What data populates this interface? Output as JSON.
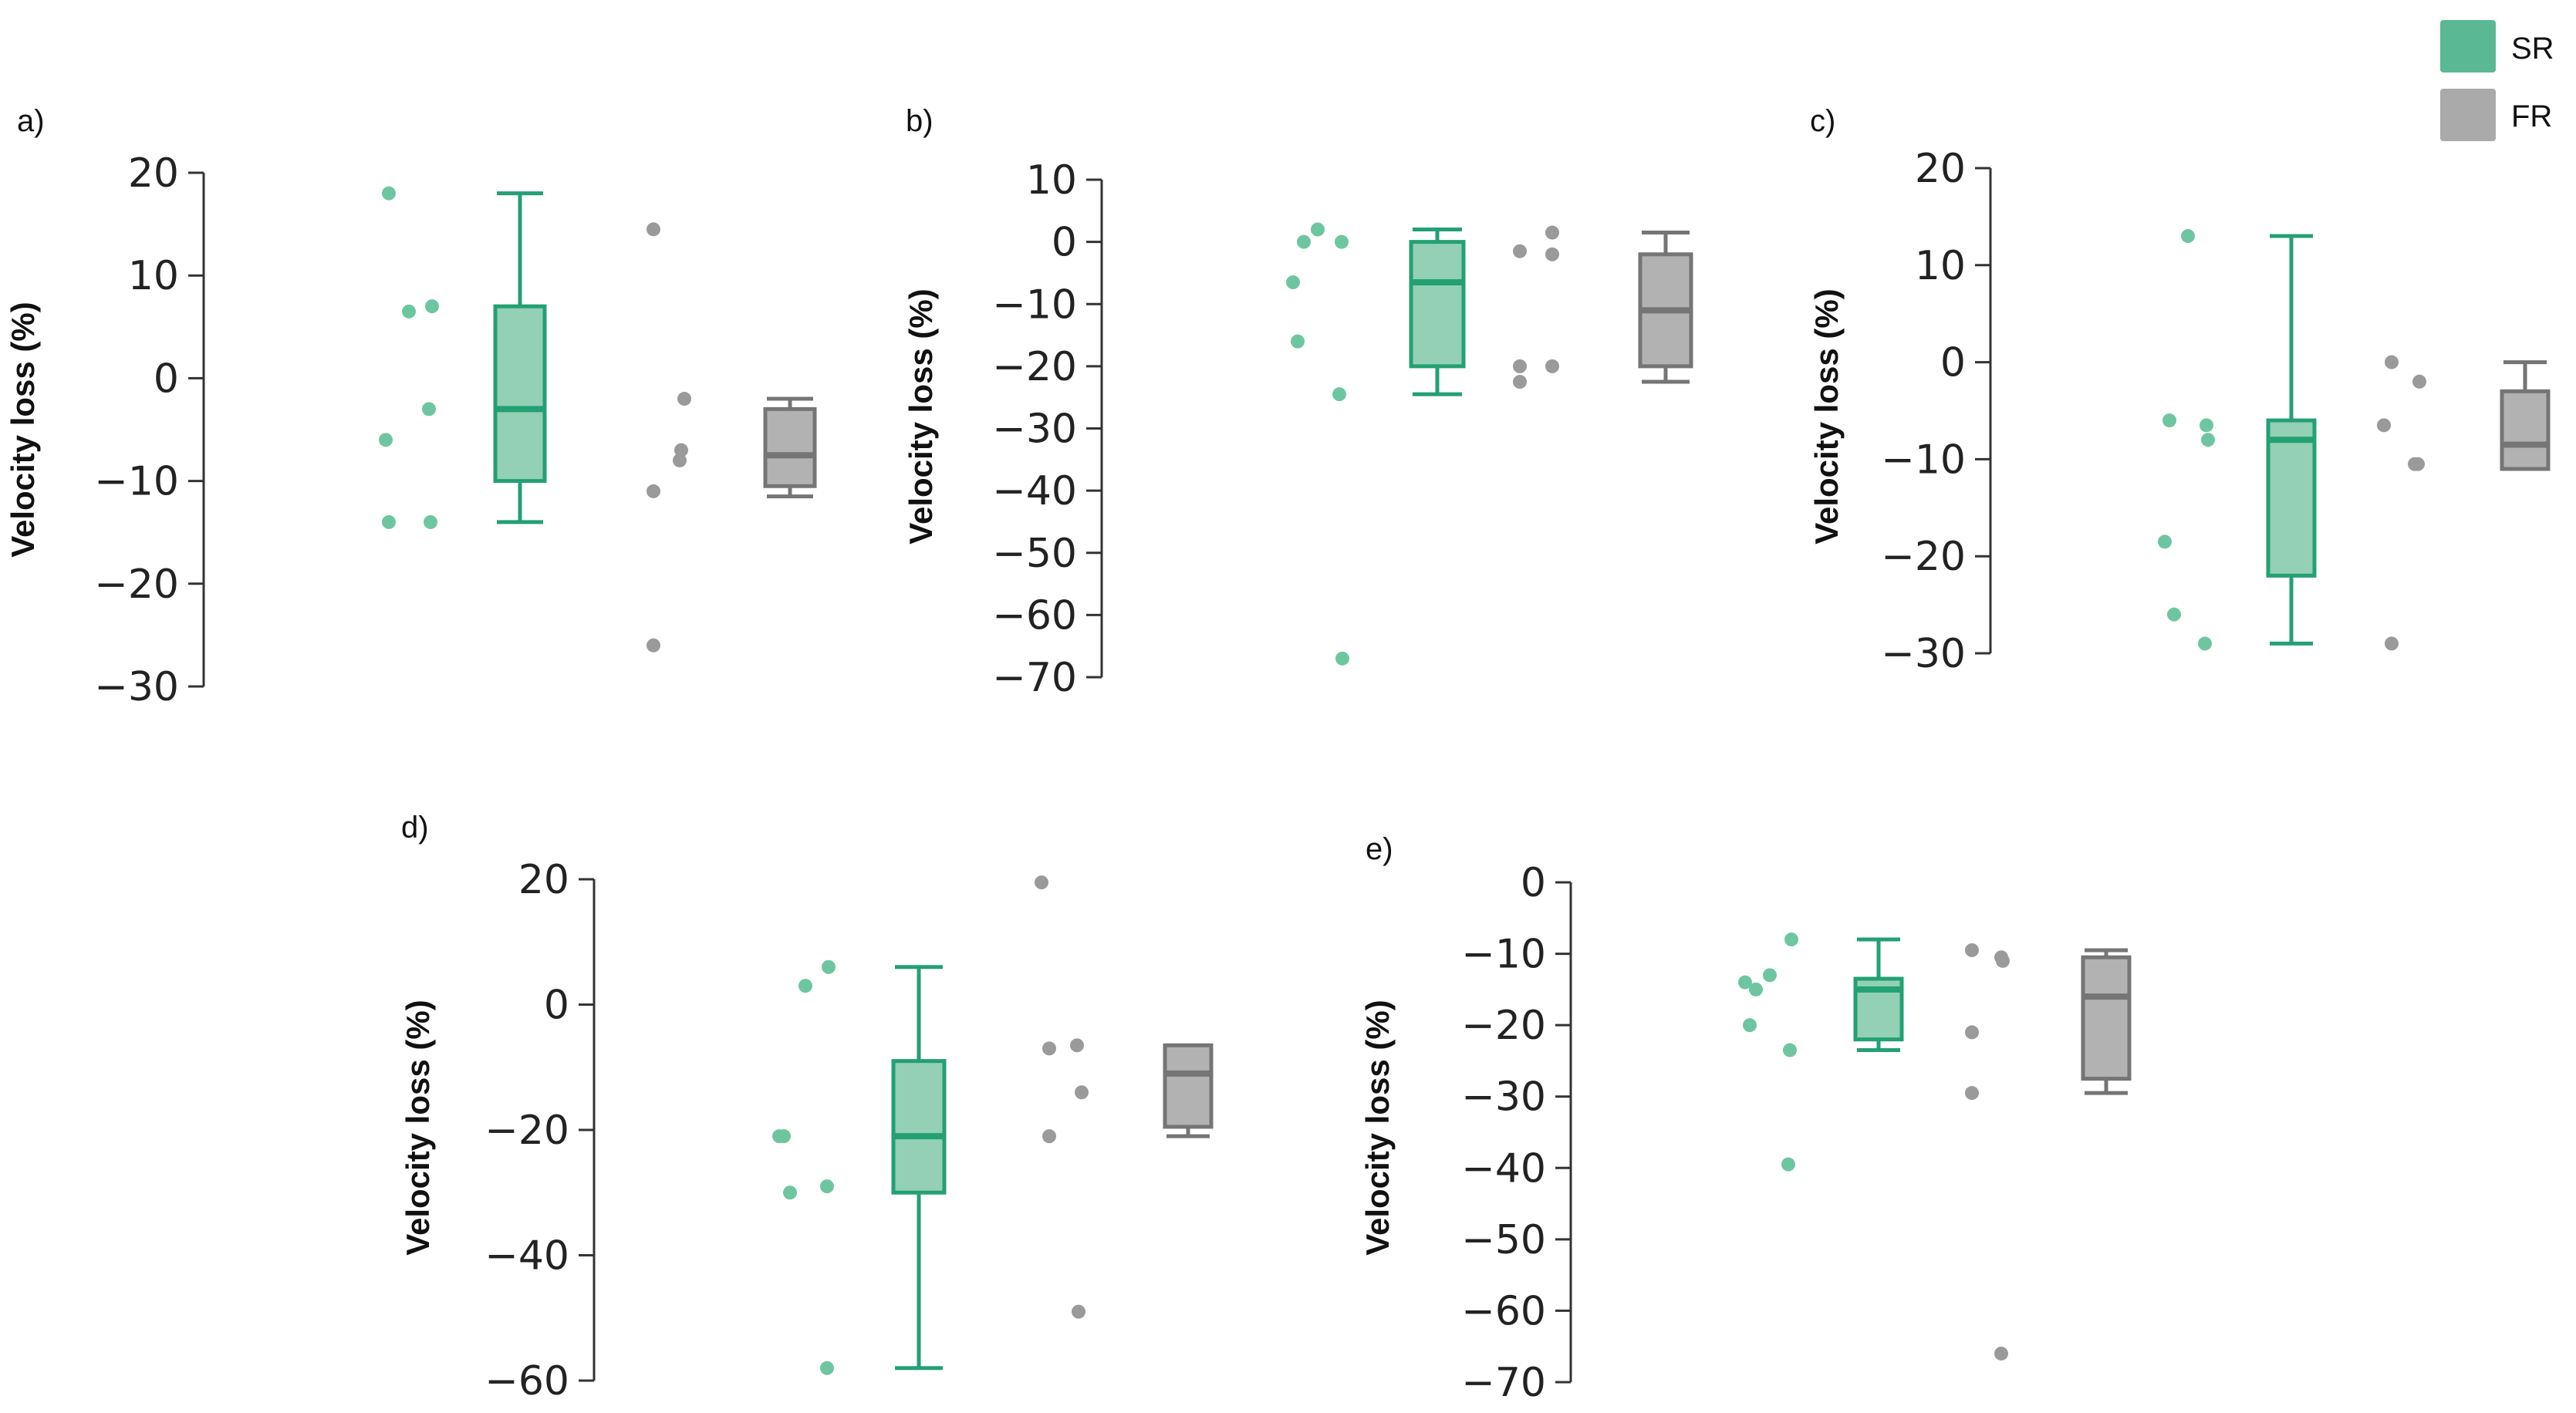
{
  "legend": {
    "items": [
      {
        "label": "SR",
        "color": "#5bb895"
      },
      {
        "label": "FR",
        "color": "#aaaaaa"
      }
    ]
  },
  "colors": {
    "sr_box_fill": "#93d0b5",
    "sr_stroke": "#23a074",
    "sr_point": "#6ec6a1",
    "fr_box_fill": "#b2b2b2",
    "fr_stroke": "#757575",
    "fr_point": "#9a9a9a"
  },
  "chart_data": [
    {
      "type": "box",
      "panel": "a)",
      "ylabel": "Velocity loss (%)",
      "ylim": [
        -30,
        20
      ],
      "yticks": [
        20,
        10,
        0,
        -10,
        -20,
        -30
      ],
      "series": [
        {
          "name": "SR",
          "points": [
            18,
            6.5,
            7,
            -3,
            -6,
            -14,
            -14
          ],
          "whisker_low": -14,
          "q1": -10,
          "median": -3,
          "q3": 7,
          "whisker_high": 18
        },
        {
          "name": "FR",
          "points": [
            14.5,
            -2,
            -7,
            -8,
            -11,
            -26
          ],
          "whisker_low": -11.5,
          "q1": -10.5,
          "median": -7.5,
          "q3": -3,
          "whisker_high": -2
        }
      ]
    },
    {
      "type": "box",
      "panel": "b)",
      "ylabel": "Velocity loss (%)",
      "ylim": [
        -70,
        10
      ],
      "yticks": [
        10,
        0,
        -10,
        -20,
        -30,
        -40,
        -50,
        -60,
        -70
      ],
      "series": [
        {
          "name": "SR",
          "points": [
            2,
            0,
            0,
            -6.5,
            -16,
            -24.5,
            -67
          ],
          "whisker_low": -24.5,
          "q1": -20,
          "median": -6.5,
          "q3": 0,
          "whisker_high": 2
        },
        {
          "name": "FR",
          "points": [
            1.5,
            -1.5,
            -2,
            -20,
            -20,
            -22.5
          ],
          "whisker_low": -22.5,
          "q1": -20,
          "median": -11,
          "q3": -2,
          "whisker_high": 1.5
        }
      ]
    },
    {
      "type": "box",
      "panel": "c)",
      "ylabel": "Velocity loss (%)",
      "ylim": [
        -30,
        20
      ],
      "yticks": [
        20,
        10,
        0,
        -10,
        -20,
        -30
      ],
      "series": [
        {
          "name": "SR",
          "points": [
            13,
            -6,
            -6.5,
            -8,
            -18.5,
            -26,
            -29
          ],
          "whisker_low": -29,
          "q1": -22,
          "median": -8,
          "q3": -6,
          "whisker_high": 13
        },
        {
          "name": "FR",
          "points": [
            0,
            -2,
            -6.5,
            -10.5,
            -10.5,
            -29
          ],
          "whisker_low": -11,
          "q1": -11,
          "median": -8.5,
          "q3": -3,
          "whisker_high": 0
        }
      ]
    },
    {
      "type": "box",
      "panel": "d)",
      "ylabel": "Velocity loss (%)",
      "ylim": [
        -60,
        20
      ],
      "yticks": [
        20,
        0,
        -20,
        -40,
        -60
      ],
      "series": [
        {
          "name": "SR",
          "points": [
            6,
            3,
            -21,
            -21,
            -29,
            -30,
            -58
          ],
          "whisker_low": -58,
          "q1": -30,
          "median": -21,
          "q3": -9,
          "whisker_high": 6
        },
        {
          "name": "FR",
          "points": [
            19.5,
            -6.5,
            -7,
            -14,
            -21,
            -49
          ],
          "whisker_low": -21,
          "q1": -19.5,
          "median": -11,
          "q3": -6.5,
          "whisker_high": -6.5
        }
      ]
    },
    {
      "type": "box",
      "panel": "e)",
      "ylabel": "Velocity loss (%)",
      "ylim": [
        -70,
        0
      ],
      "yticks": [
        0,
        -10,
        -20,
        -30,
        -40,
        -50,
        -60,
        -70
      ],
      "series": [
        {
          "name": "SR",
          "points": [
            -8,
            -13,
            -14,
            -15,
            -20,
            -23.5,
            -39.5
          ],
          "whisker_low": -23.5,
          "q1": -22,
          "median": -15,
          "q3": -13.5,
          "whisker_high": -8
        },
        {
          "name": "FR",
          "points": [
            -9.5,
            -10.5,
            -11,
            -21,
            -29.5,
            -66
          ],
          "whisker_low": -29.5,
          "q1": -27.5,
          "median": -16,
          "q3": -10.5,
          "whisker_high": -9.5
        }
      ]
    }
  ]
}
